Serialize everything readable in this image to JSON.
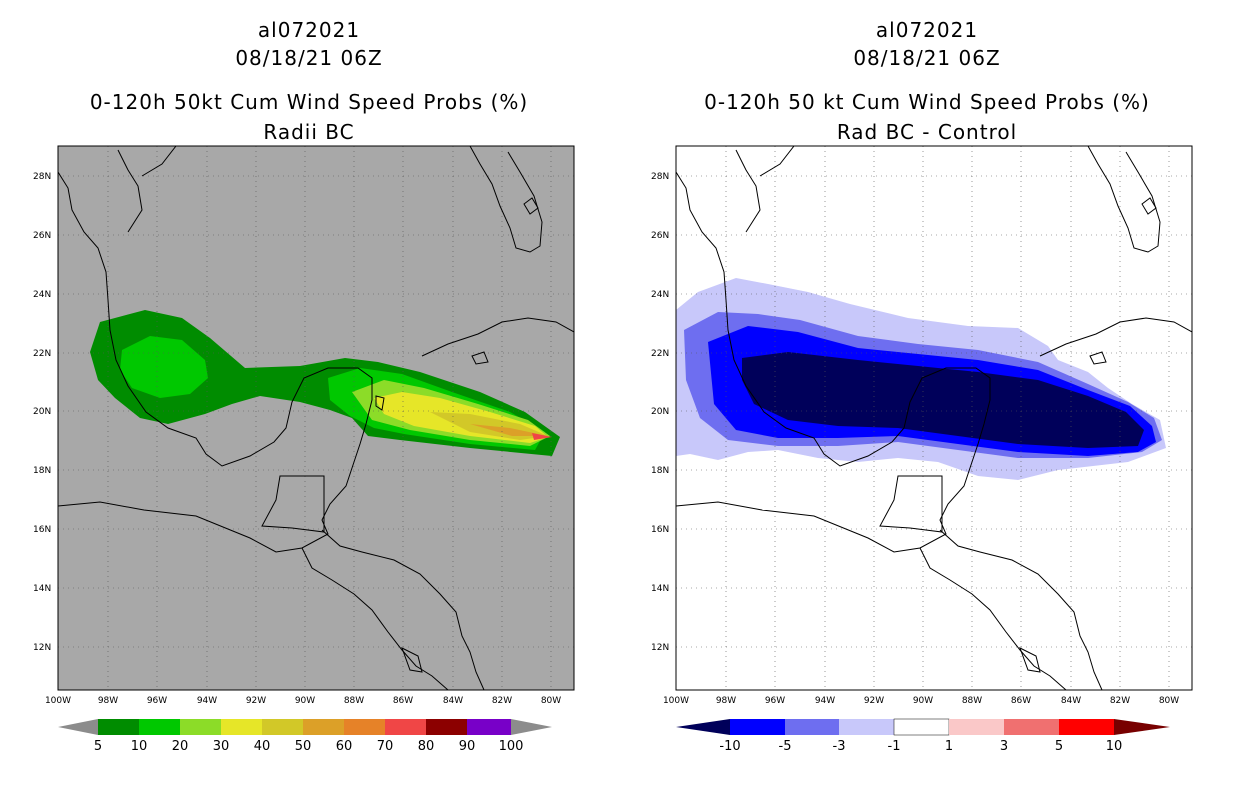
{
  "panels": [
    {
      "storm_id": "al072021",
      "datetime": "08/18/21 06Z",
      "title": "0-120h 50kt Cum Wind Speed Probs (%)",
      "subtitle": "Radii BC",
      "background_color": "#a8a8a8",
      "colorbar": {
        "labels": [
          "5",
          "10",
          "20",
          "30",
          "40",
          "50",
          "60",
          "70",
          "80",
          "90",
          "100"
        ],
        "colors": [
          "#008c00",
          "#00c800",
          "#8cdc28",
          "#e6e628",
          "#d2c828",
          "#dca028",
          "#e68228",
          "#f04646",
          "#8c0000",
          "#7800c8"
        ],
        "end_left": "#8c8c8c",
        "end_right": "#8c8c8c"
      }
    },
    {
      "storm_id": "al072021",
      "datetime": "08/18/21 06Z",
      "title": "0-120h 50 kt Cum Wind Speed Probs (%)",
      "subtitle": "Rad BC - Control",
      "background_color": "#ffffff",
      "colorbar": {
        "labels": [
          "-10",
          "-5",
          "-3",
          "-1",
          "1",
          "3",
          "5",
          "10"
        ],
        "colors": [
          "#0000ff",
          "#6e6ef0",
          "#c8c8fa",
          "#ffffff",
          "#fac8c8",
          "#f07070",
          "#ff0000"
        ],
        "end_left": "#00005a",
        "end_right": "#780000"
      }
    }
  ],
  "lat_labels": [
    "28N",
    "26N",
    "24N",
    "22N",
    "20N",
    "18N",
    "16N",
    "14N",
    "12N"
  ],
  "lon_labels": [
    "100W",
    "98W",
    "96W",
    "94W",
    "92W",
    "90W",
    "88W",
    "86W",
    "84W",
    "82W",
    "80W"
  ],
  "colors": {
    "green_dark": "#008c00",
    "green": "#00c800",
    "green_light": "#8cdc28",
    "yellow": "#e6e628",
    "gold": "#d2c828",
    "orange": "#dca028",
    "red": "#f04646",
    "navy": "#00005a",
    "blue": "#0000ff",
    "blue_mid": "#6e6ef0",
    "blue_light": "#c8c8fa"
  }
}
